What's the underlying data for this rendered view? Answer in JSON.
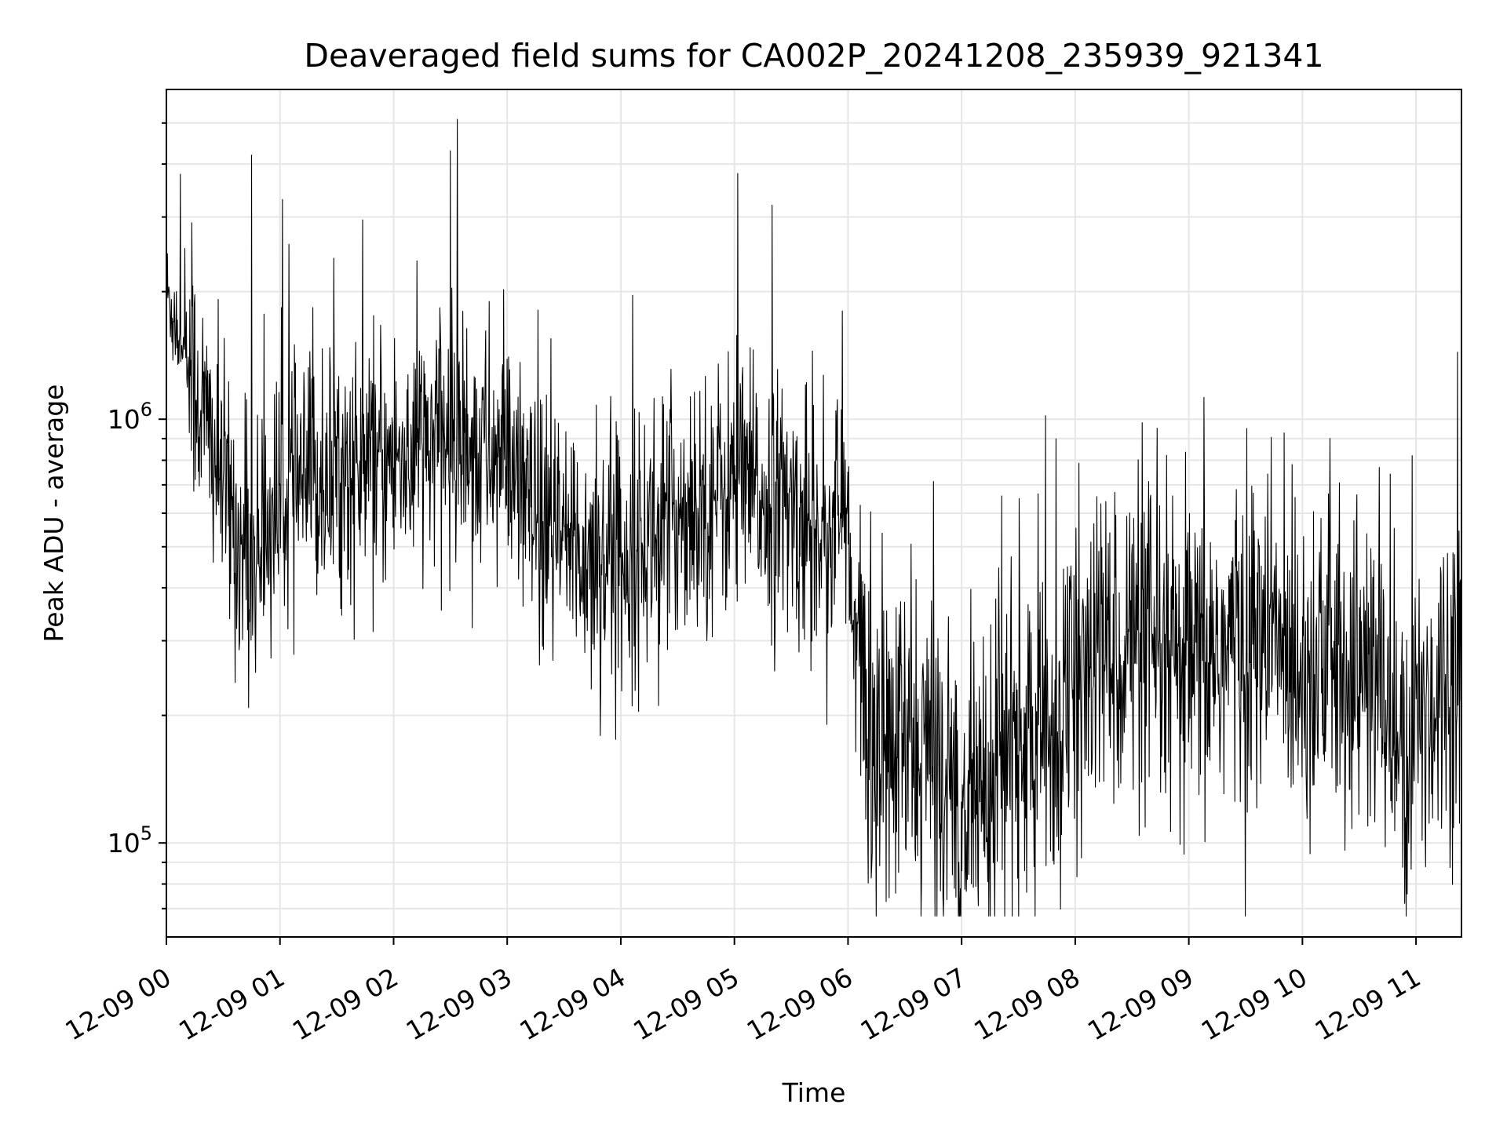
{
  "chart_data": {
    "type": "line",
    "title": "Deaveraged field sums for CA002P_20241208_235939_921341",
    "xlabel": "Time",
    "ylabel": "Peak ADU - average",
    "x_tick_labels": [
      "12-09 00",
      "12-09 01",
      "12-09 02",
      "12-09 03",
      "12-09 04",
      "12-09 05",
      "12-09 06",
      "12-09 07",
      "12-09 08",
      "12-09 09",
      "12-09 10",
      "12-09 11"
    ],
    "x_tick_hours": [
      0,
      1,
      2,
      3,
      4,
      5,
      6,
      7,
      8,
      9,
      10,
      11
    ],
    "xlim_hours": [
      0,
      11.4
    ],
    "y_scale": "log",
    "ylim": [
      60000,
      6000000
    ],
    "y_major_ticks": [
      {
        "value": 100000,
        "base": "10",
        "exponent": "5"
      },
      {
        "value": 1000000,
        "base": "10",
        "exponent": "6"
      }
    ],
    "grid": true,
    "line_color": "#000000",
    "grid_color": "#e6e6e6",
    "series": [
      {
        "x_hours": [
          0.0,
          0.25,
          0.5,
          0.65,
          0.75,
          1.0,
          1.25,
          1.5,
          1.75,
          2.0,
          2.25,
          2.5,
          2.75,
          3.0,
          3.25,
          3.5,
          3.75,
          4.0,
          4.25,
          4.5,
          4.75,
          5.0,
          5.25,
          5.5,
          5.75,
          5.98,
          6.05,
          6.25,
          6.5,
          6.75,
          7.0,
          7.25,
          7.5,
          7.75,
          8.0,
          8.25,
          8.5,
          8.75,
          9.0,
          9.25,
          9.5,
          9.75,
          10.0,
          10.25,
          10.5,
          10.75,
          10.9,
          11.0,
          11.2,
          11.4
        ],
        "y_median": [
          2000000,
          1200000,
          700000,
          500000,
          450000,
          650000,
          700000,
          750000,
          750000,
          800000,
          850000,
          900000,
          850000,
          800000,
          550000,
          500000,
          480000,
          480000,
          520000,
          600000,
          650000,
          700000,
          650000,
          600000,
          550000,
          600000,
          300000,
          160000,
          170000,
          160000,
          120000,
          150000,
          170000,
          170000,
          230000,
          280000,
          300000,
          250000,
          250000,
          280000,
          300000,
          300000,
          280000,
          270000,
          250000,
          230000,
          130000,
          200000,
          230000,
          300000
        ],
        "y_spikes": [
          {
            "x_hours": 0.75,
            "y": 4200000
          },
          {
            "x_hours": 1.02,
            "y": 3300000
          },
          {
            "x_hours": 2.5,
            "y": 4300000
          },
          {
            "x_hours": 2.56,
            "y": 5100000
          },
          {
            "x_hours": 5.03,
            "y": 3800000
          },
          {
            "x_hours": 5.33,
            "y": 3200000
          },
          {
            "x_hours": 5.95,
            "y": 1800000
          },
          {
            "x_hours": 6.99,
            "y": 78000
          },
          {
            "x_hours": 10.9,
            "y": 72000
          }
        ]
      }
    ]
  }
}
